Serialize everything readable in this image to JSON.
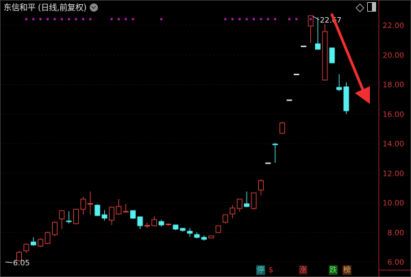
{
  "header": {
    "title": "东信和平 (日线,前复权)",
    "dropdown_icon": "chevron-down-icon",
    "diamond_icon": "diamond-icon",
    "layout_icon": "panel-toggle-icon"
  },
  "chart_data": {
    "type": "candlestick",
    "title": "东信和平 (日线,前复权)",
    "y_ticks": [
      "22.00",
      "20.00",
      "18.00",
      "16.00",
      "14.00",
      "12.00",
      "10.00",
      "8.00",
      "6.00"
    ],
    "ylim": [
      6,
      22.2
    ],
    "max_label": "22.67",
    "min_label": "6.05",
    "colors": {
      "up": "#e0443e",
      "down": "#54f0f0",
      "flat": "#e6e6e6",
      "axis": "#b0262a",
      "grid": "#2a0a0a",
      "marker": "#c020c0",
      "arrow": "#f03030"
    },
    "candles": [
      {
        "o": 6.09,
        "h": 6.75,
        "l": 6.05,
        "c": 6.65
      },
      {
        "o": 6.75,
        "h": 7.25,
        "l": 6.6,
        "c": 7.2
      },
      {
        "o": 7.35,
        "h": 7.67,
        "l": 7.1,
        "c": 7.15
      },
      {
        "o": 7.07,
        "h": 7.6,
        "l": 7.0,
        "c": 7.53
      },
      {
        "o": 7.25,
        "h": 8.05,
        "l": 7.2,
        "c": 7.99
      },
      {
        "o": 7.85,
        "h": 8.75,
        "l": 7.75,
        "c": 8.68
      },
      {
        "o": 8.91,
        "h": 9.5,
        "l": 8.22,
        "c": 9.47
      },
      {
        "o": 8.77,
        "h": 9.42,
        "l": 8.6,
        "c": 8.77
      },
      {
        "o": 8.59,
        "h": 9.6,
        "l": 8.55,
        "c": 9.56
      },
      {
        "o": 9.56,
        "h": 10.39,
        "l": 9.2,
        "c": 10.25
      },
      {
        "o": 9.93,
        "h": 10.76,
        "l": 9.2,
        "c": 9.95
      },
      {
        "o": 9.84,
        "h": 9.9,
        "l": 9.1,
        "c": 9.14
      },
      {
        "o": 9.19,
        "h": 9.5,
        "l": 8.8,
        "c": 8.96
      },
      {
        "o": 8.82,
        "h": 9.75,
        "l": 8.5,
        "c": 9.7
      },
      {
        "o": 9.24,
        "h": 10.25,
        "l": 9.2,
        "c": 9.75
      },
      {
        "o": 9.38,
        "h": 9.93,
        "l": 9.35,
        "c": 9.42
      },
      {
        "o": 9.47,
        "h": 9.5,
        "l": 8.9,
        "c": 8.96
      },
      {
        "o": 9.05,
        "h": 9.08,
        "l": 8.22,
        "c": 8.45
      },
      {
        "o": 8.45,
        "h": 8.65,
        "l": 8.3,
        "c": 8.47
      },
      {
        "o": 8.45,
        "h": 9.1,
        "l": 8.4,
        "c": 8.87
      },
      {
        "o": 8.73,
        "h": 8.85,
        "l": 8.4,
        "c": 8.5
      },
      {
        "o": 8.53,
        "h": 8.6,
        "l": 8.45,
        "c": 8.56
      },
      {
        "o": 8.5,
        "h": 8.52,
        "l": 8.15,
        "c": 8.22
      },
      {
        "o": 8.27,
        "h": 8.3,
        "l": 8.05,
        "c": 8.13
      },
      {
        "o": 8.08,
        "h": 8.3,
        "l": 7.7,
        "c": 7.94
      },
      {
        "o": 7.85,
        "h": 8.0,
        "l": 7.6,
        "c": 7.66
      },
      {
        "o": 7.66,
        "h": 7.8,
        "l": 7.45,
        "c": 7.53
      },
      {
        "o": 7.62,
        "h": 7.76,
        "l": 7.6,
        "c": 7.76
      },
      {
        "o": 7.99,
        "h": 8.45,
        "l": 7.95,
        "c": 8.45
      },
      {
        "o": 8.68,
        "h": 9.19,
        "l": 8.6,
        "c": 9.19
      },
      {
        "o": 9.24,
        "h": 9.85,
        "l": 8.95,
        "c": 9.65
      },
      {
        "o": 9.61,
        "h": 10.25,
        "l": 9.4,
        "c": 10.25
      },
      {
        "o": 9.93,
        "h": 10.76,
        "l": 9.7,
        "c": 9.75
      },
      {
        "o": 9.61,
        "h": 10.67,
        "l": 9.55,
        "c": 10.67
      },
      {
        "o": 10.86,
        "h": 11.6,
        "l": 10.5,
        "c": 11.5
      },
      {
        "o": 12.7,
        "h": 12.7,
        "l": 12.7,
        "c": 12.7
      },
      {
        "o": 13.97,
        "h": 14.05,
        "l": 12.7,
        "c": 13.97
      },
      {
        "o": 14.7,
        "h": 15.45,
        "l": 14.65,
        "c": 15.4
      },
      {
        "o": 16.96,
        "h": 16.96,
        "l": 16.96,
        "c": 16.96
      },
      {
        "o": 18.7,
        "h": 18.7,
        "l": 18.7,
        "c": 18.7
      },
      {
        "o": 20.6,
        "h": 20.6,
        "l": 20.6,
        "c": 20.6
      },
      {
        "o": 21.95,
        "h": 22.67,
        "l": 20.8,
        "c": 22.65
      },
      {
        "o": 20.75,
        "h": 22.55,
        "l": 20.38,
        "c": 20.38
      },
      {
        "o": 18.3,
        "h": 22.1,
        "l": 18.3,
        "c": 21.58
      },
      {
        "o": 20.47,
        "h": 20.5,
        "l": 19.46,
        "c": 19.46
      },
      {
        "o": 17.8,
        "h": 18.7,
        "l": 17.55,
        "c": 17.65
      },
      {
        "o": 17.84,
        "h": 18.15,
        "l": 16.0,
        "c": 16.22
      }
    ],
    "marker_days": [
      1,
      2,
      3,
      4,
      5,
      6,
      7,
      8,
      9,
      10,
      13,
      14,
      15,
      16,
      20,
      29,
      30,
      31,
      32,
      33,
      34,
      35,
      36,
      38,
      39,
      41
    ]
  },
  "badges": [
    {
      "text": "停",
      "color": "#40d0d0",
      "bg": "#1a5a5a"
    },
    {
      "text": "$",
      "color": "#e03030",
      "bg": "transparent"
    },
    {
      "text": "涨",
      "color": "#ff5050",
      "bg": "#3a1010"
    },
    {
      "text": "跌",
      "color": "#50ff50",
      "bg": "#1a4a1a"
    },
    {
      "text": "榜",
      "color": "#f0a060",
      "bg": "#4a2a10"
    }
  ]
}
